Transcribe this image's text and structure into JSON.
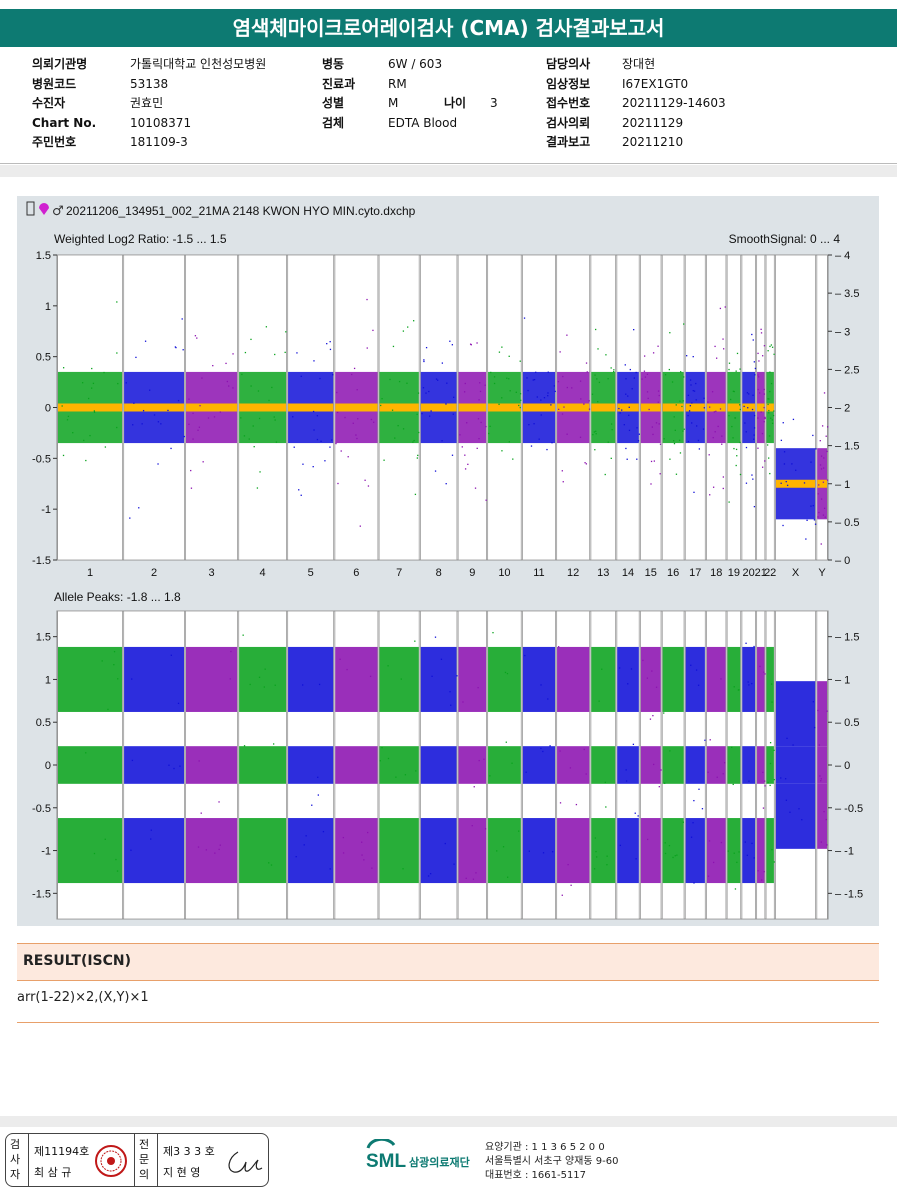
{
  "header": {
    "title": "염색체마이크로어레이검사 (CMA) 검사결과보고서"
  },
  "patient": {
    "col1": [
      {
        "label": "의뢰기관명",
        "value": "가톨릭대학교 인천성모병원"
      },
      {
        "label": "병원코드",
        "value": "53138"
      },
      {
        "label": "수진자",
        "value": "권효민"
      },
      {
        "label": "Chart No.",
        "value": "10108371"
      },
      {
        "label": "주민번호",
        "value": "181109-3"
      }
    ],
    "col2": [
      {
        "label": "병동",
        "value": "6W / 603"
      },
      {
        "label": "진료과",
        "value": "RM"
      },
      {
        "label": "성별",
        "value": "M"
      },
      {
        "label": "검체",
        "value": "EDTA Blood"
      }
    ],
    "age": {
      "label": "나이",
      "value": "3"
    },
    "col3": [
      {
        "label": "담당의사",
        "value": "장대현"
      },
      {
        "label": "임상정보",
        "value": "I67EX1GT0"
      },
      {
        "label": "접수번호",
        "value": "20211129-14603"
      },
      {
        "label": "검사의뢰",
        "value": "20211129"
      },
      {
        "label": "결과보고",
        "value": "20211210"
      }
    ]
  },
  "chart_data": [
    {
      "type": "scatter",
      "file_title": "20211206_134951_002_21MA 2148 KWON HYO MIN.cyto.dxchp",
      "title": "Weighted Log2 Ratio: -1.5 ... 1.5",
      "right_title": "SmoothSignal: 0 ... 4",
      "ylim": [
        -1.5,
        1.5
      ],
      "y2lim": [
        0,
        4
      ],
      "yticks": [
        "1.5",
        "1",
        "0.5",
        "0",
        "-0.5",
        "-1",
        "-1.5"
      ],
      "y2ticks": [
        "4",
        "3.5",
        "3",
        "2.5",
        "2",
        "1.5",
        "1",
        "0.5",
        "0"
      ],
      "categories": [
        "1",
        "2",
        "3",
        "4",
        "5",
        "6",
        "7",
        "8",
        "9",
        "10",
        "11",
        "12",
        "13",
        "14",
        "15",
        "16",
        "17",
        "18",
        "19",
        "20",
        "21",
        "22",
        "X",
        "Y"
      ],
      "series": [
        {
          "values": [
            0,
            0,
            0,
            0,
            0,
            0,
            0,
            0,
            0,
            0,
            0,
            0,
            0,
            0,
            0,
            0,
            0,
            0,
            0,
            0,
            0,
            0,
            -0.75,
            -0.75
          ]
        }
      ],
      "smooth_signal": [
        2,
        2,
        2,
        2,
        2,
        2,
        2,
        2,
        2,
        2,
        2,
        2,
        2,
        2,
        2,
        2,
        2,
        2,
        2,
        2,
        2,
        2,
        1,
        1
      ],
      "colors": {
        "green": "#0aa31e",
        "blue": "#1010d8",
        "purple": "#8c12b0",
        "smooth": "#ffb400"
      }
    },
    {
      "type": "scatter",
      "title": "Allele Peaks: -1.8 ... 1.8",
      "ylim": [
        -1.8,
        1.8
      ],
      "yticks": [
        "1.5",
        "1",
        "0.5",
        "0",
        "-0.5",
        "-1",
        "-1.5"
      ],
      "series": [
        {
          "values": [
            1,
            1,
            1,
            1,
            1,
            1,
            1,
            1,
            1,
            1,
            1,
            1,
            1,
            1,
            1,
            1,
            1,
            1,
            1,
            1,
            1,
            1,
            0.6,
            0.6
          ]
        },
        {
          "values": [
            0,
            0,
            0,
            0,
            0,
            0,
            0,
            0,
            0,
            0,
            0,
            0,
            0,
            0,
            0,
            0,
            0,
            0,
            0,
            0,
            0,
            0,
            0,
            0
          ]
        },
        {
          "values": [
            -1,
            -1,
            -1,
            -1,
            -1,
            -1,
            -1,
            -1,
            -1,
            -1,
            -1,
            -1,
            -1,
            -1,
            -1,
            -1,
            -1,
            -1,
            -1,
            -1,
            -1,
            -1,
            -0.6,
            -0.6
          ]
        }
      ]
    }
  ],
  "result": {
    "heading": "RESULT(ISCN)",
    "text": "arr(1-22)×2,(X,Y)×1"
  },
  "footer": {
    "sig_left_label": "검사자",
    "sig_left_no": "제11194호",
    "sig_left_name": "최 삼 규",
    "sig_right_label": "전문의",
    "sig_right_no": "제3 3 3 호",
    "sig_right_name": "지 현 영",
    "logo_text": "SML",
    "org_name": "삼광의료재단",
    "addr_line1": "요양기관 : 1 1 3 6 5 2 0 0",
    "addr_line2": "서울특별시 서초구 양재동 9-60",
    "addr_line3": "대표번호 : 1661-5117"
  }
}
